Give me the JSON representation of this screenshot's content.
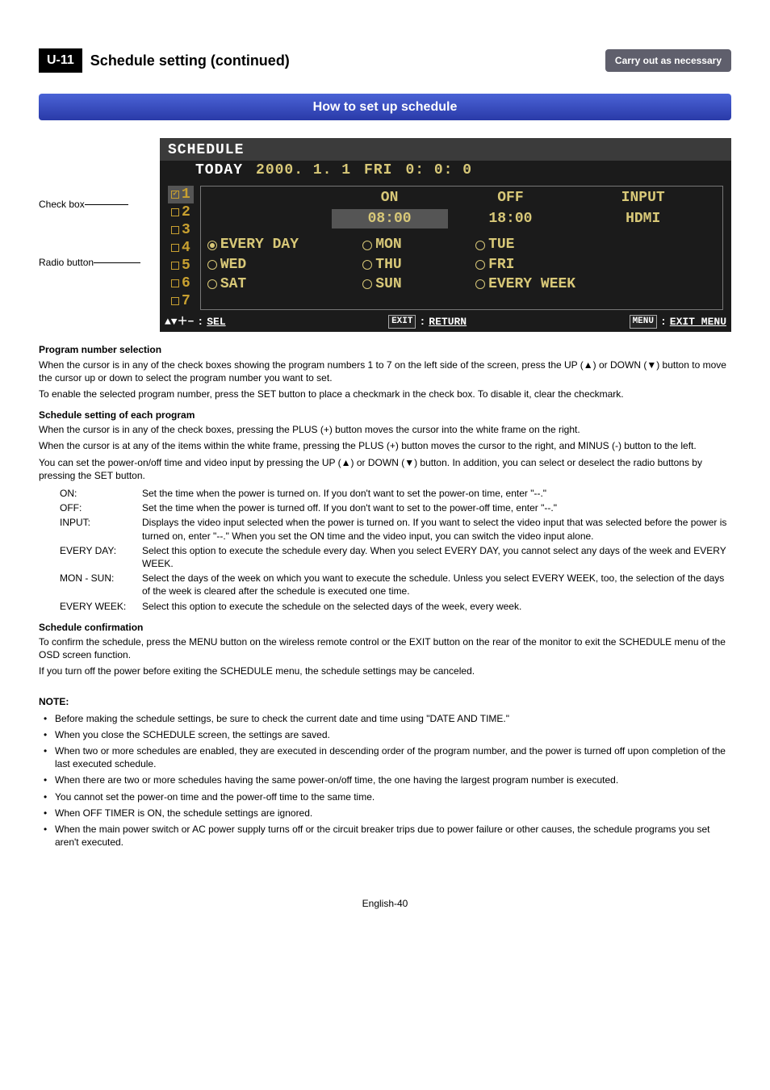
{
  "header": {
    "chip": "U-11",
    "title": "Schedule setting (continued)",
    "badge": "Carry out as necessary"
  },
  "banner": "How to set up schedule",
  "callouts": {
    "checkbox": "Check box",
    "radiobutton": "Radio button"
  },
  "osd": {
    "title": "SCHEDULE",
    "today_label": "TODAY",
    "today_date": "2000. 1. 1",
    "today_dow": "FRI",
    "today_time": "0: 0: 0",
    "numbers": [
      {
        "n": "1",
        "checked": true,
        "selected": true
      },
      {
        "n": "2",
        "checked": false,
        "selected": false
      },
      {
        "n": "3",
        "checked": false,
        "selected": false
      },
      {
        "n": "4",
        "checked": false,
        "selected": false
      },
      {
        "n": "5",
        "checked": false,
        "selected": false
      },
      {
        "n": "6",
        "checked": false,
        "selected": false
      },
      {
        "n": "7",
        "checked": false,
        "selected": false
      }
    ],
    "headers": {
      "on": "ON",
      "off": "OFF",
      "input": "INPUT"
    },
    "values": {
      "on": "08:00",
      "off": "18:00",
      "input": "HDMI"
    },
    "days": [
      {
        "label": "EVERY DAY",
        "on": true
      },
      {
        "label": "MON",
        "on": false
      },
      {
        "label": "TUE",
        "on": false
      },
      {
        "label": "",
        "on": null
      },
      {
        "label": "WED",
        "on": false
      },
      {
        "label": "THU",
        "on": false
      },
      {
        "label": "FRI",
        "on": false
      },
      {
        "label": "",
        "on": null
      },
      {
        "label": "SAT",
        "on": false
      },
      {
        "label": "SUN",
        "on": false
      },
      {
        "label": "EVERY WEEK",
        "on": false
      }
    ],
    "footer": {
      "sel_icon": "▲▼＋−",
      "sel": "SEL",
      "exit_key": "EXIT",
      "return": "RETURN",
      "menu_key": "MENU",
      "exitmenu": "EXIT MENU"
    },
    "colors": {
      "bg": "#1b1b1b",
      "accent": "#d8c878",
      "amber": "#c8a030",
      "panel_border": "#777777"
    }
  },
  "body": {
    "h_prog": "Program number selection",
    "p_prog1": "When the cursor is in any of the check boxes showing the program numbers 1 to 7 on the left side of the screen, press the UP (▲) or DOWN (▼) button to move the cursor up or down to select the program number you want to set.",
    "p_prog2": "To enable the selected program number, press the SET button to place a checkmark in the check box. To disable it, clear the checkmark.",
    "h_sched": "Schedule setting of each program",
    "p_sched1": "When the cursor is in any of the check boxes, pressing the PLUS (+) button moves the cursor into the white frame on the right.",
    "p_sched2": "When the cursor is at any of the items within the white frame, pressing the PLUS (+) button moves the cursor to the right, and MINUS (-) button to the left.",
    "p_sched3": "You can set the power-on/off time and video input by pressing the UP (▲) or DOWN (▼) button. In addition, you can select or deselect the radio buttons by pressing the SET button.",
    "defs": [
      {
        "k": "ON:",
        "v": "Set the time when the power is turned on. If you don't want to set the power-on time, enter \"--.\""
      },
      {
        "k": "OFF:",
        "v": "Set the time when the power is turned off. If you don't want to set to the power-off time, enter \"--.\""
      },
      {
        "k": "INPUT:",
        "v": "Displays the video input selected when the power is turned on. If you want to select the video input that was selected before the power is turned on, enter \"--.\" When you set the ON time and the video input, you can switch the video input alone."
      },
      {
        "k": "EVERY DAY:",
        "v": "Select this option to execute the schedule every day. When you select EVERY DAY, you cannot select any days of the week and EVERY WEEK."
      },
      {
        "k": "MON - SUN:",
        "v": "Select the days of the week on which you want to execute the schedule. Unless you select EVERY WEEK, too, the selection of the days of the week is cleared after the schedule is executed one time."
      },
      {
        "k": "EVERY WEEK:",
        "v": "Select this option to execute the schedule on the selected days of the week, every week."
      }
    ],
    "h_conf": "Schedule confirmation",
    "p_conf1": "To confirm the schedule, press the MENU button on the wireless remote control or the EXIT button on the rear of the monitor to exit the SCHEDULE menu of the OSD screen function.",
    "p_conf2": "If you turn off the power before exiting the SCHEDULE menu, the schedule settings may be canceled.",
    "note_title": "NOTE:",
    "notes": [
      "Before making the schedule settings, be sure to check the current date and time using \"DATE AND TIME.\"",
      "When you close the SCHEDULE screen, the settings are saved.",
      "When two or more schedules are enabled, they are executed in descending order of the program number, and the power is turned off upon completion of the last executed schedule.",
      "When there are two or more schedules having the same power-on/off time, the one having the largest program number is executed.",
      "You cannot set the power-on time and the power-off time to the same time.",
      "When OFF TIMER is ON, the schedule settings are ignored.",
      "When the main power switch or AC power supply turns off or the circuit breaker trips due to power failure or other causes, the schedule programs you set aren't executed."
    ]
  },
  "pagenum": "English-40"
}
